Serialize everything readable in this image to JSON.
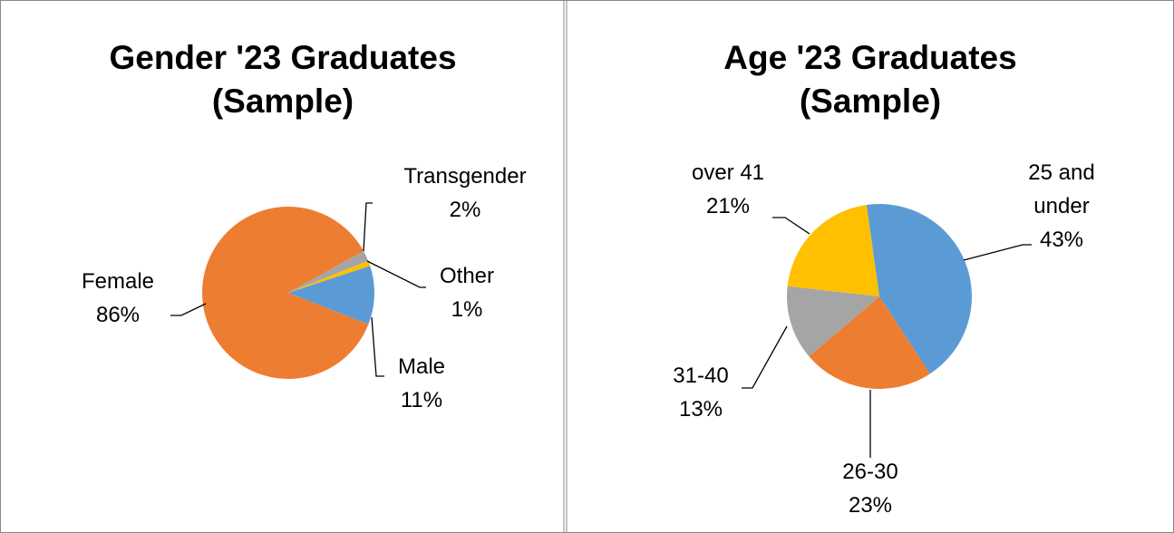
{
  "chart_data": [
    {
      "type": "pie",
      "title": "Gender '23 Graduates (Sample)",
      "categories": [
        "Female",
        "Transgender",
        "Other",
        "Male"
      ],
      "values": [
        86,
        2,
        1,
        11
      ],
      "value_labels": [
        "86%",
        "2%",
        "1%",
        "11%"
      ],
      "colors": [
        "#ed7d31",
        "#a5a5a5",
        "#ffc000",
        "#5b9bd5"
      ]
    },
    {
      "type": "pie",
      "title": "Age '23 Graduates (Sample)",
      "categories": [
        "25 and under",
        "26-30",
        "31-40",
        "over 41"
      ],
      "values": [
        43,
        23,
        13,
        21
      ],
      "value_labels": [
        "43%",
        "23%",
        "13%",
        "21%"
      ],
      "colors": [
        "#5b9bd5",
        "#ed7d31",
        "#a5a5a5",
        "#ffc000"
      ]
    }
  ]
}
